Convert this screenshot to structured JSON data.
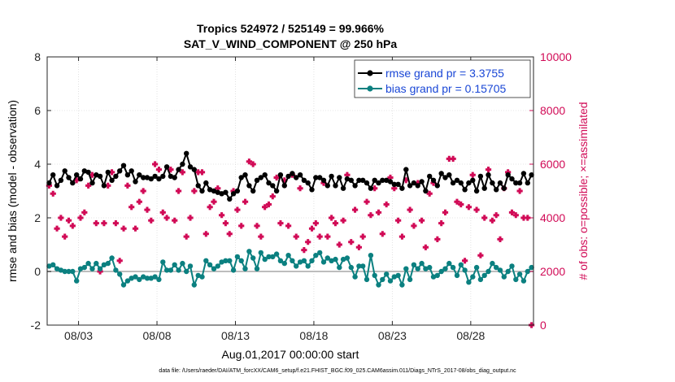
{
  "chart_data": {
    "type": "line",
    "title_line1": "Tropics 524972 / 525149 = 99.966%",
    "title_line2": "SAT_V_WIND_COMPONENT @ 250 hPa",
    "xlabel": "Aug.01,2017 00:00:00 start",
    "ylabel_left": "rmse and bias (model - observation)",
    "ylabel_right": "# of obs: o=possible; ×=assimilated",
    "footnote": "data file: /Users/raeder/DAI/ATM_forcXX/CAM6_setup/f.e21.FHIST_BGC.f09_025.CAM6assim.011/Diags_NTrS_2017-08/obs_diag_output.nc",
    "xlim": [
      1.0,
      32.0
    ],
    "ylim_left": [
      -2,
      8
    ],
    "ylim_right": [
      0,
      10000
    ],
    "x_ticks": [
      3,
      8,
      13,
      18,
      23,
      28
    ],
    "x_tick_labels": [
      "08/03",
      "08/08",
      "08/13",
      "08/18",
      "08/23",
      "08/28"
    ],
    "y_left_ticks": [
      -2,
      0,
      2,
      4,
      6,
      8
    ],
    "y_right_ticks": [
      0,
      2000,
      4000,
      6000,
      8000,
      10000
    ],
    "legend": [
      {
        "name": "rmse",
        "label": "rmse grand pr = 3.3755"
      },
      {
        "name": "bias",
        "label": "bias grand pr = 0.15705"
      }
    ],
    "colors": {
      "rmse": "#000000",
      "bias": "#0b8080",
      "obs": "#d10a56",
      "zero_line": "#bdbdbd",
      "legend_text": "#1a47d6"
    },
    "series": [
      {
        "name": "rmse",
        "x": [
          1.125,
          1.375,
          1.625,
          1.875,
          2.125,
          2.375,
          2.625,
          2.875,
          3.125,
          3.375,
          3.625,
          3.875,
          4.125,
          4.375,
          4.625,
          4.875,
          5.125,
          5.375,
          5.625,
          5.875,
          6.125,
          6.375,
          6.625,
          6.875,
          7.125,
          7.375,
          7.625,
          7.875,
          8.125,
          8.375,
          8.625,
          8.875,
          9.125,
          9.375,
          9.625,
          9.875,
          10.125,
          10.375,
          10.625,
          10.875,
          11.125,
          11.375,
          11.625,
          11.875,
          12.125,
          12.375,
          12.625,
          12.875,
          13.125,
          13.375,
          13.625,
          13.875,
          14.125,
          14.375,
          14.625,
          14.875,
          15.125,
          15.375,
          15.625,
          15.875,
          16.125,
          16.375,
          16.625,
          16.875,
          17.125,
          17.375,
          17.625,
          17.875,
          18.125,
          18.375,
          18.625,
          18.875,
          19.125,
          19.375,
          19.625,
          19.875,
          20.125,
          20.375,
          20.625,
          20.875,
          21.125,
          21.375,
          21.625,
          21.875,
          22.125,
          22.375,
          22.625,
          22.875,
          23.125,
          23.375,
          23.625,
          23.875,
          24.125,
          24.375,
          24.625,
          24.875,
          25.125,
          25.375,
          25.625,
          25.875,
          26.125,
          26.375,
          26.625,
          26.875,
          27.125,
          27.375,
          27.625,
          27.875,
          28.125,
          28.375,
          28.625,
          28.875,
          29.125,
          29.375,
          29.625,
          29.875,
          30.125,
          30.375,
          30.625,
          30.875,
          31.125,
          31.375,
          31.625,
          31.875
        ],
        "values": [
          3.3,
          3.6,
          3.2,
          3.4,
          3.75,
          3.5,
          3.3,
          3.6,
          3.45,
          3.75,
          3.7,
          3.3,
          3.6,
          3.55,
          3.2,
          3.7,
          3.4,
          3.55,
          3.75,
          3.95,
          3.6,
          3.75,
          3.35,
          3.6,
          3.5,
          3.5,
          3.45,
          3.55,
          3.45,
          3.55,
          3.9,
          3.55,
          3.5,
          3.8,
          4.0,
          4.4,
          3.9,
          3.8,
          3.2,
          3.0,
          3.3,
          3.05,
          3.0,
          2.95,
          2.9,
          2.95,
          2.7,
          2.9,
          3.0,
          3.5,
          3.6,
          3.2,
          3.0,
          3.4,
          3.5,
          3.6,
          3.3,
          3.2,
          3.0,
          3.6,
          3.2,
          3.55,
          3.65,
          3.5,
          3.6,
          3.4,
          3.3,
          3.05,
          3.5,
          3.5,
          3.4,
          3.2,
          3.55,
          3.2,
          3.5,
          3.1,
          3.45,
          3.4,
          3.2,
          3.4,
          3.4,
          3.3,
          3.1,
          3.4,
          3.3,
          3.4,
          3.4,
          3.35,
          3.25,
          3.25,
          3.1,
          3.8,
          3.2,
          3.3,
          3.2,
          3.35,
          3.0,
          3.55,
          3.4,
          3.2,
          3.65,
          3.5,
          3.6,
          3.3,
          3.4,
          3.3,
          3.05,
          3.3,
          3.4,
          3.0,
          3.55,
          3.1,
          3.6,
          3.3,
          3.05,
          3.3,
          3.1,
          3.6,
          3.45,
          3.3,
          3.3,
          3.65,
          3.3,
          3.6
        ],
        "marker": "filled-circle"
      },
      {
        "name": "bias",
        "x": [
          1.125,
          1.375,
          1.625,
          1.875,
          2.125,
          2.375,
          2.625,
          2.875,
          3.125,
          3.375,
          3.625,
          3.875,
          4.125,
          4.375,
          4.625,
          4.875,
          5.125,
          5.375,
          5.625,
          5.875,
          6.125,
          6.375,
          6.625,
          6.875,
          7.125,
          7.375,
          7.625,
          7.875,
          8.125,
          8.375,
          8.625,
          8.875,
          9.125,
          9.375,
          9.625,
          9.875,
          10.125,
          10.375,
          10.625,
          10.875,
          11.125,
          11.375,
          11.625,
          11.875,
          12.125,
          12.375,
          12.625,
          12.875,
          13.125,
          13.375,
          13.625,
          13.875,
          14.125,
          14.375,
          14.625,
          14.875,
          15.125,
          15.375,
          15.625,
          15.875,
          16.125,
          16.375,
          16.625,
          16.875,
          17.125,
          17.375,
          17.625,
          17.875,
          18.125,
          18.375,
          18.625,
          18.875,
          19.125,
          19.375,
          19.625,
          19.875,
          20.125,
          20.375,
          20.625,
          20.875,
          21.125,
          21.375,
          21.625,
          21.875,
          22.125,
          22.375,
          22.625,
          22.875,
          23.125,
          23.375,
          23.625,
          23.875,
          24.125,
          24.375,
          24.625,
          24.875,
          25.125,
          25.375,
          25.625,
          25.875,
          26.125,
          26.375,
          26.625,
          26.875,
          27.125,
          27.375,
          27.625,
          27.875,
          28.125,
          28.375,
          28.625,
          28.875,
          29.125,
          29.375,
          29.625,
          29.875,
          30.125,
          30.375,
          30.625,
          30.875,
          31.125,
          31.375,
          31.625,
          31.875
        ],
        "values": [
          0.2,
          0.25,
          0.1,
          0.05,
          0.0,
          0.0,
          0.0,
          -0.35,
          0.1,
          0.15,
          0.3,
          0.1,
          0.3,
          0.1,
          0.25,
          0.3,
          0.5,
          0.05,
          -0.1,
          -0.5,
          -0.35,
          -0.25,
          -0.2,
          -0.3,
          -0.2,
          -0.25,
          -0.25,
          -0.2,
          -0.3,
          0.35,
          0.05,
          0.05,
          0.25,
          0.05,
          0.3,
          0.0,
          0.2,
          -0.5,
          -0.15,
          -0.2,
          0.4,
          0.25,
          0.1,
          0.2,
          0.35,
          0.4,
          0.4,
          0.05,
          0.55,
          0.4,
          0.1,
          0.75,
          0.5,
          0.1,
          0.7,
          0.45,
          0.55,
          0.55,
          0.65,
          0.4,
          0.3,
          0.6,
          0.4,
          0.2,
          0.35,
          0.4,
          0.2,
          0.4,
          0.6,
          0.7,
          0.35,
          0.5,
          0.4,
          0.45,
          0.15,
          0.45,
          0.5,
          0.15,
          -0.2,
          0.2,
          0.2,
          -0.3,
          0.6,
          -0.15,
          -0.5,
          -0.3,
          -0.1,
          -0.35,
          -0.2,
          -0.15,
          -0.5,
          0.1,
          -0.3,
          0.25,
          0.1,
          0.3,
          0.1,
          0.15,
          -0.2,
          -0.15,
          0.0,
          0.1,
          0.3,
          0.15,
          -0.15,
          0.25,
          0.05,
          -0.4,
          -0.2,
          0.15,
          -0.3,
          -0.15,
          0.0,
          0.3,
          0.15,
          0.05,
          -0.2,
          0.0,
          0.2,
          -0.3,
          -0.1,
          -0.35,
          0.0,
          0.15
        ],
        "marker": "filled-circle"
      },
      {
        "name": "obs_assimilated",
        "axis": "right",
        "x": [
          1.125,
          1.375,
          1.625,
          1.875,
          2.125,
          2.375,
          2.625,
          2.875,
          3.125,
          3.375,
          3.625,
          3.875,
          4.125,
          4.375,
          4.625,
          4.875,
          5.125,
          5.375,
          5.625,
          5.875,
          6.125,
          6.375,
          6.625,
          6.875,
          7.125,
          7.375,
          7.625,
          7.875,
          8.125,
          8.375,
          8.625,
          8.875,
          9.125,
          9.375,
          9.625,
          9.875,
          10.125,
          10.375,
          10.625,
          10.875,
          11.125,
          11.375,
          11.625,
          11.875,
          12.125,
          12.375,
          12.625,
          12.875,
          13.125,
          13.375,
          13.625,
          13.875,
          14.125,
          14.375,
          14.625,
          14.875,
          15.125,
          15.375,
          15.625,
          15.875,
          16.125,
          16.375,
          16.625,
          16.875,
          17.125,
          17.375,
          17.625,
          17.875,
          18.125,
          18.375,
          18.625,
          18.875,
          19.125,
          19.375,
          19.625,
          19.875,
          20.125,
          20.375,
          20.625,
          20.875,
          21.125,
          21.375,
          21.625,
          21.875,
          22.125,
          22.375,
          22.625,
          22.875,
          23.125,
          23.375,
          23.625,
          23.875,
          24.125,
          24.375,
          24.625,
          24.875,
          25.125,
          25.375,
          25.625,
          25.875,
          26.125,
          26.375,
          26.625,
          26.875,
          27.125,
          27.375,
          27.625,
          27.875,
          28.125,
          28.375,
          28.625,
          28.875,
          29.125,
          29.375,
          29.625,
          29.875,
          30.125,
          30.375,
          30.625,
          30.875,
          31.125,
          31.375,
          31.625,
          31.875
        ],
        "values": [
          5200,
          4900,
          3600,
          4000,
          3300,
          3900,
          3700,
          5400,
          4000,
          4200,
          5200,
          5600,
          3800,
          2000,
          3800,
          5200,
          5700,
          3800,
          2400,
          3600,
          5200,
          4400,
          3600,
          4600,
          5000,
          4300,
          3900,
          6000,
          5800,
          4200,
          4000,
          5800,
          3900,
          5000,
          5700,
          3300,
          4000,
          5000,
          5700,
          5700,
          3400,
          4400,
          4600,
          5100,
          4100,
          3800,
          3400,
          5000,
          4300,
          3700,
          4600,
          6100,
          6000,
          3700,
          3300,
          4400,
          4500,
          4800,
          5500,
          3800,
          5400,
          3700,
          5600,
          3300,
          5100,
          2800,
          3100,
          3600,
          3800,
          3300,
          5300,
          3300,
          4000,
          3800,
          3000,
          3900,
          5600,
          3100,
          4300,
          2900,
          3300,
          4600,
          4100,
          5100,
          4200,
          3400,
          4500,
          5500,
          5100,
          3900,
          3300,
          5400,
          4300,
          3700,
          5300,
          3900,
          2900,
          4900,
          5300,
          3200,
          3800,
          4200,
          6200,
          6200,
          4600,
          4500,
          2400,
          4400,
          5600,
          4300,
          2600,
          4000,
          5800,
          3900,
          4100,
          3200,
          5100,
          5700,
          4200,
          4100,
          5000,
          4000,
          4000,
          0
        ]
      }
    ]
  }
}
